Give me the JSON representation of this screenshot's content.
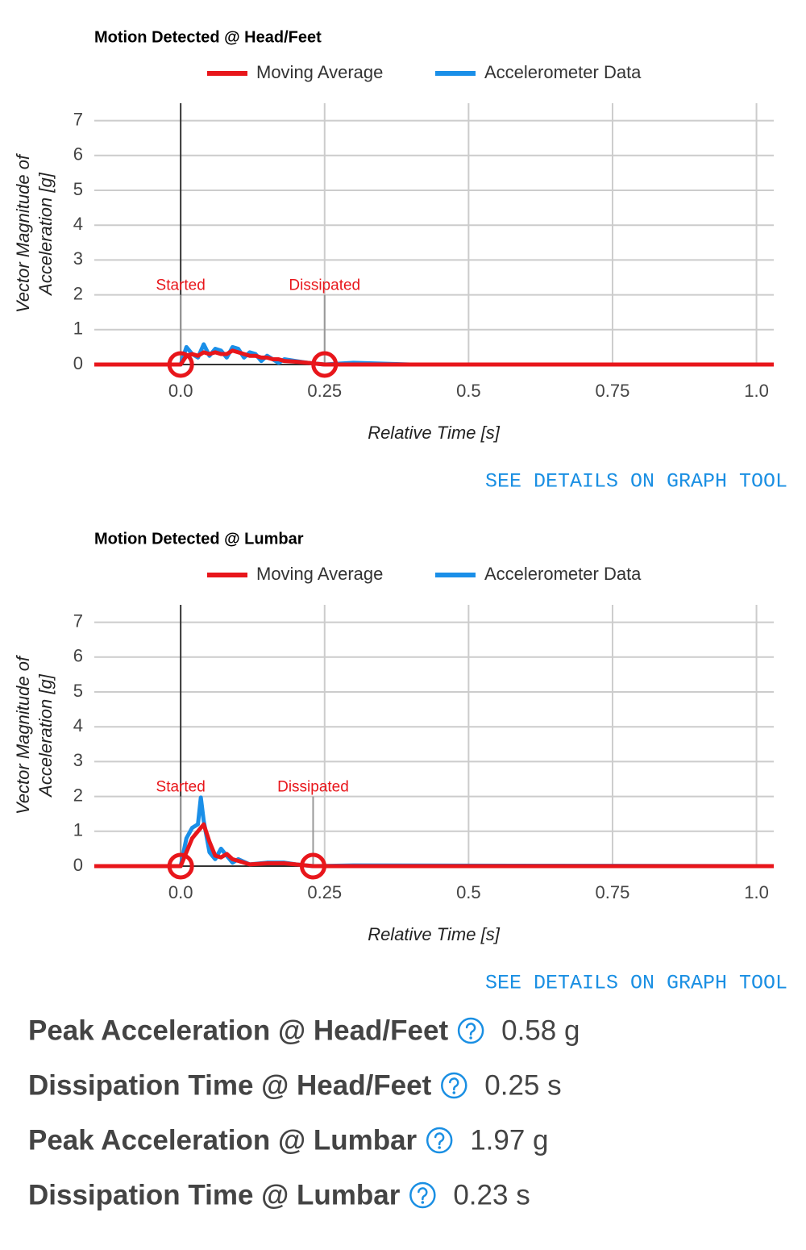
{
  "chart_data": [
    {
      "type": "line",
      "title": "Motion Detected @ Head/Feet",
      "xlabel": "Relative Time [s]",
      "ylabel": [
        "Vector Magnitude of",
        "Acceleration [g]"
      ],
      "legend": "top",
      "grid": true,
      "xlim": [
        -0.15,
        1.03
      ],
      "ylim": [
        0,
        7.5
      ],
      "xticks": [
        {
          "value": 0,
          "label": "0.0"
        },
        0.25,
        0.5,
        0.75,
        {
          "value": 1,
          "label": "1.0"
        }
      ],
      "yticks": [
        0,
        1,
        2,
        3,
        4,
        5,
        6,
        7
      ],
      "x": [
        -0.15,
        0,
        0.01,
        0.02,
        0.03,
        0.04,
        0.05,
        0.06,
        0.07,
        0.08,
        0.09,
        0.1,
        0.11,
        0.12,
        0.13,
        0.14,
        0.15,
        0.16,
        0.17,
        0.18,
        0.2,
        0.22,
        0.25,
        0.3,
        0.4,
        1.03
      ],
      "series": [
        {
          "name": "Moving Average",
          "color": "#e8161b",
          "values": [
            0,
            0,
            0.25,
            0.3,
            0.25,
            0.35,
            0.3,
            0.35,
            0.3,
            0.3,
            0.4,
            0.35,
            0.3,
            0.25,
            0.25,
            0.2,
            0.2,
            0.15,
            0.15,
            0.1,
            0.08,
            0.05,
            0,
            0,
            0,
            0
          ]
        },
        {
          "name": "Accelerometer Data",
          "color": "#1a8fe8",
          "values": [
            0,
            0,
            0.5,
            0.3,
            0.2,
            0.58,
            0.25,
            0.45,
            0.4,
            0.2,
            0.5,
            0.45,
            0.2,
            0.35,
            0.3,
            0.1,
            0.25,
            0.15,
            0.05,
            0.15,
            0.1,
            0.05,
            0,
            0.05,
            0,
            0
          ]
        }
      ],
      "annotations": [
        {
          "text": "Started",
          "x": 0,
          "y": 2
        },
        {
          "text": "Dissipated",
          "x": 0.25,
          "y": 2
        }
      ],
      "link": "SEE DETAILS ON GRAPH TOOL"
    },
    {
      "type": "line",
      "title": "Motion Detected @ Lumbar",
      "xlabel": "Relative Time [s]",
      "ylabel": [
        "Vector Magnitude of",
        "Acceleration [g]"
      ],
      "legend": "top",
      "grid": true,
      "xlim": [
        -0.15,
        1.03
      ],
      "ylim": [
        0,
        7.5
      ],
      "xticks": [
        {
          "value": 0,
          "label": "0.0"
        },
        0.25,
        0.5,
        0.75,
        {
          "value": 1,
          "label": "1.0"
        }
      ],
      "yticks": [
        0,
        1,
        2,
        3,
        4,
        5,
        6,
        7
      ],
      "x": [
        -0.15,
        0,
        0.01,
        0.02,
        0.03,
        0.035,
        0.04,
        0.05,
        0.06,
        0.07,
        0.08,
        0.09,
        0.1,
        0.12,
        0.15,
        0.18,
        0.2,
        0.23,
        0.3,
        1.03
      ],
      "series": [
        {
          "name": "Moving Average",
          "color": "#e8161b",
          "values": [
            0,
            0,
            0.4,
            0.8,
            1.0,
            1.1,
            1.2,
            0.7,
            0.3,
            0.25,
            0.35,
            0.2,
            0.15,
            0.05,
            0.08,
            0.08,
            0.05,
            0,
            0,
            0
          ]
        },
        {
          "name": "Accelerometer Data",
          "color": "#1a8fe8",
          "values": [
            0,
            0,
            0.8,
            1.1,
            1.2,
            1.97,
            1.3,
            0.4,
            0.2,
            0.5,
            0.3,
            0.1,
            0.2,
            0.05,
            0.1,
            0.1,
            0.05,
            0,
            0.02,
            0
          ]
        }
      ],
      "annotations": [
        {
          "text": "Started",
          "x": 0,
          "y": 2
        },
        {
          "text": "Dissipated",
          "x": 0.23,
          "y": 2
        }
      ],
      "link": "SEE DETAILS ON GRAPH TOOL"
    }
  ],
  "metrics": [
    {
      "label": "Peak Acceleration @ Head/Feet",
      "value": "0.58 g"
    },
    {
      "label": "Dissipation Time @ Head/Feet",
      "value": "0.25 s"
    },
    {
      "label": "Peak Acceleration @ Lumbar",
      "value": "1.97 g"
    },
    {
      "label": "Dissipation Time @ Lumbar",
      "value": "0.23 s"
    }
  ]
}
